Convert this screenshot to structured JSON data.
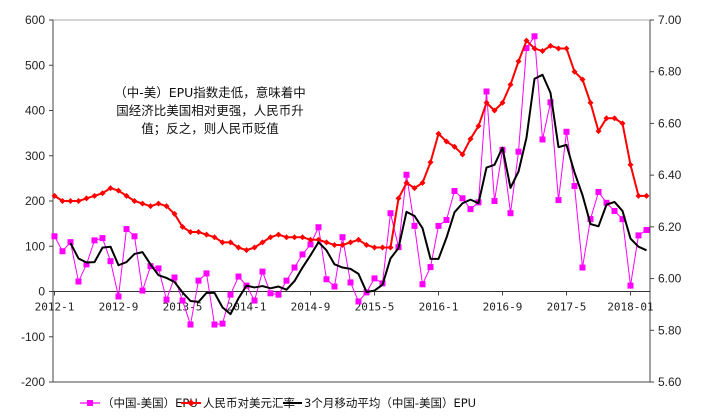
{
  "chart_data": {
    "type": "line",
    "title": "",
    "annotation": [
      "（中-美）EPU指数走低，意味着中",
      "国经济比美国相对更强，人民币升",
      "值；反之，则人民币贬值"
    ],
    "x_tick_labels": [
      "2012-1",
      "2012-9",
      "2013-5",
      "2014-1",
      "2014-9",
      "2015-5",
      "2016-1",
      "2016-9",
      "2017-5",
      "2018-01"
    ],
    "x_start": "2012-1",
    "x_count": 75,
    "left_axis": {
      "ylim": [
        -200,
        600
      ],
      "ticks": [
        "600",
        "500",
        "400",
        "300",
        "200",
        "100",
        "0",
        "-100",
        "-200"
      ]
    },
    "right_axis": {
      "ylim": [
        5.6,
        7.0
      ],
      "ticks": [
        "7.00",
        "6.80",
        "6.60",
        "6.40",
        "6.20",
        "6.00",
        "5.80",
        "5.60"
      ]
    },
    "grid": false,
    "legend_position": "bottom",
    "series": [
      {
        "name": "（中国-美国）EPU",
        "axis": "left",
        "color": "#ff00ff",
        "marker": "square",
        "values": [
          122,
          89,
          109,
          22,
          60,
          113,
          118,
          67,
          -11,
          138,
          122,
          2,
          56,
          51,
          -18,
          31,
          -20,
          -73,
          24,
          40,
          -73,
          -71,
          -7,
          33,
          13,
          -20,
          44,
          -4,
          -7,
          24,
          53,
          82,
          104,
          142,
          27,
          11,
          120,
          20,
          -22,
          -2,
          29,
          18,
          173,
          98,
          258,
          145,
          16,
          54,
          145,
          158,
          222,
          206,
          182,
          197,
          442,
          200,
          313,
          173,
          309,
          538,
          564,
          336,
          418,
          202,
          353,
          233,
          53,
          160,
          220,
          196,
          178,
          160,
          13,
          124,
          136
        ]
      },
      {
        "name": "人民币对美元汇率",
        "axis": "right",
        "color": "#ff0000",
        "marker": "diamond",
        "values": [
          6.32,
          6.3,
          6.3,
          6.3,
          6.31,
          6.32,
          6.33,
          6.35,
          6.34,
          6.32,
          6.3,
          6.29,
          6.28,
          6.29,
          6.28,
          6.25,
          6.2,
          6.18,
          6.18,
          6.17,
          6.16,
          6.14,
          6.14,
          6.12,
          6.11,
          6.12,
          6.14,
          6.16,
          6.17,
          6.16,
          6.16,
          6.16,
          6.15,
          6.15,
          6.14,
          6.13,
          6.13,
          6.14,
          6.15,
          6.13,
          6.12,
          6.12,
          6.12,
          6.31,
          6.37,
          6.35,
          6.37,
          6.45,
          6.56,
          6.53,
          6.51,
          6.48,
          6.54,
          6.59,
          6.68,
          6.65,
          6.68,
          6.75,
          6.84,
          6.92,
          6.89,
          6.88,
          6.9,
          6.89,
          6.89,
          6.8,
          6.77,
          6.68,
          6.57,
          6.62,
          6.62,
          6.6,
          6.44,
          6.32,
          6.32
        ]
      },
      {
        "name": "3个月移动平均（中国-美国）EPU",
        "axis": "left",
        "color": "#000000",
        "marker": "none",
        "values": [
          null,
          null,
          107,
          73,
          64,
          65,
          97,
          99,
          58,
          65,
          83,
          87,
          60,
          36,
          30,
          21,
          -2,
          -21,
          -23,
          -3,
          -3,
          -35,
          -50,
          -15,
          13,
          9,
          12,
          7,
          11,
          4,
          23,
          53,
          80,
          109,
          91,
          60,
          53,
          50,
          39,
          -1,
          2,
          15,
          73,
          96,
          176,
          167,
          140,
          72,
          72,
          119,
          175,
          195,
          203,
          195,
          274,
          280,
          318,
          229,
          265,
          340,
          470,
          479,
          439,
          319,
          324,
          263,
          213,
          149,
          144,
          192,
          198,
          178,
          117,
          99,
          91
        ]
      }
    ]
  }
}
